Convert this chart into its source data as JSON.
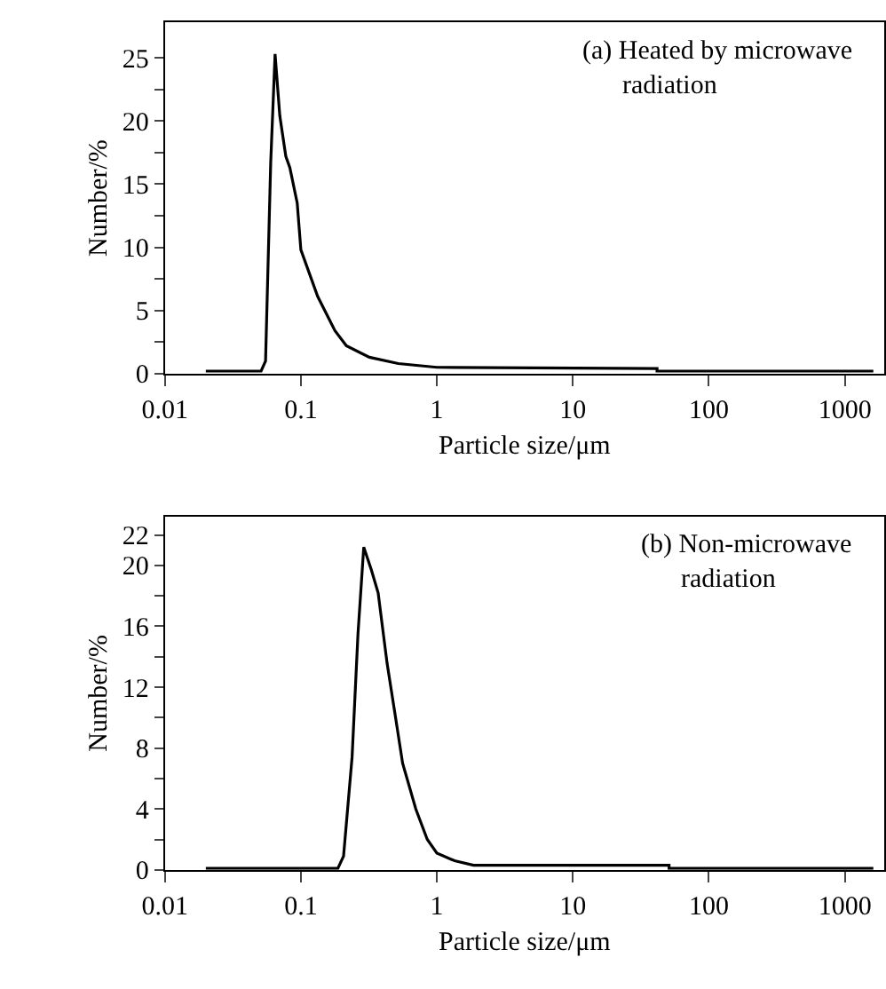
{
  "chart_data": [
    {
      "type": "line",
      "xlabel": "Particle size/μm",
      "ylabel": "Number/%",
      "annotations": [
        "(a) Heated by microwave\n      radiation"
      ],
      "log": "x",
      "xlim": [
        0.01,
        1950
      ],
      "xticks": [
        0.01,
        0.1,
        1,
        10,
        100,
        1000
      ],
      "ylim": [
        0,
        27.8
      ],
      "yticks": [
        0,
        {
          "value": 2.5,
          "label": null
        },
        5,
        {
          "value": 7.5,
          "label": null
        },
        10,
        {
          "value": 12.5,
          "label": null
        },
        15,
        {
          "value": 17.5,
          "label": null
        },
        20,
        {
          "value": 22.5,
          "label": null
        },
        25
      ],
      "marker": "none",
      "line_style": "solid",
      "series": [
        {
          "color": "#000000",
          "x": [
            0.02,
            0.051,
            0.055,
            0.06,
            0.0646,
            0.07,
            0.0775,
            0.083,
            0.094,
            0.1,
            0.133,
            0.178,
            0.216,
            0.319,
            0.52,
            1,
            41.6,
            41.6,
            1620
          ],
          "values": [
            0.2,
            0.2,
            1.0,
            16.7,
            25.3,
            20.4,
            17.2,
            16.3,
            13.5,
            9.8,
            6.1,
            3.4,
            2.2,
            1.3,
            0.8,
            0.5,
            0.4,
            0.2,
            0.2
          ]
        }
      ]
    },
    {
      "type": "line",
      "xlabel": "Particle size/μm",
      "ylabel": "Number/%",
      "annotations": [
        "(b) Non-microwave\n      radiation"
      ],
      "log": "x",
      "xlim": [
        0.01,
        1950
      ],
      "xticks": [
        0.01,
        0.1,
        1,
        10,
        100,
        1000
      ],
      "ylim": [
        0,
        23.2
      ],
      "yticks": [
        0,
        {
          "value": 2,
          "label": null
        },
        4,
        {
          "value": 6,
          "label": null
        },
        8,
        {
          "value": 10,
          "label": null
        },
        12,
        {
          "value": 14,
          "label": null
        },
        16,
        {
          "value": 18,
          "label": null
        },
        20,
        22
      ],
      "marker": "none",
      "line_style": "solid",
      "series": [
        {
          "color": "#000000",
          "x": [
            0.02,
            0.187,
            0.206,
            0.238,
            0.263,
            0.29,
            0.33,
            0.37,
            0.43,
            0.495,
            0.56,
            0.7,
            0.85,
            1.0,
            1.35,
            1.86,
            51,
            51,
            1620
          ],
          "values": [
            0.1,
            0.1,
            0.9,
            7.4,
            15.5,
            21.2,
            19.7,
            18.2,
            13.6,
            10.1,
            7.0,
            4.0,
            2.0,
            1.1,
            0.6,
            0.3,
            0.3,
            0.1,
            0.1
          ]
        }
      ]
    }
  ]
}
